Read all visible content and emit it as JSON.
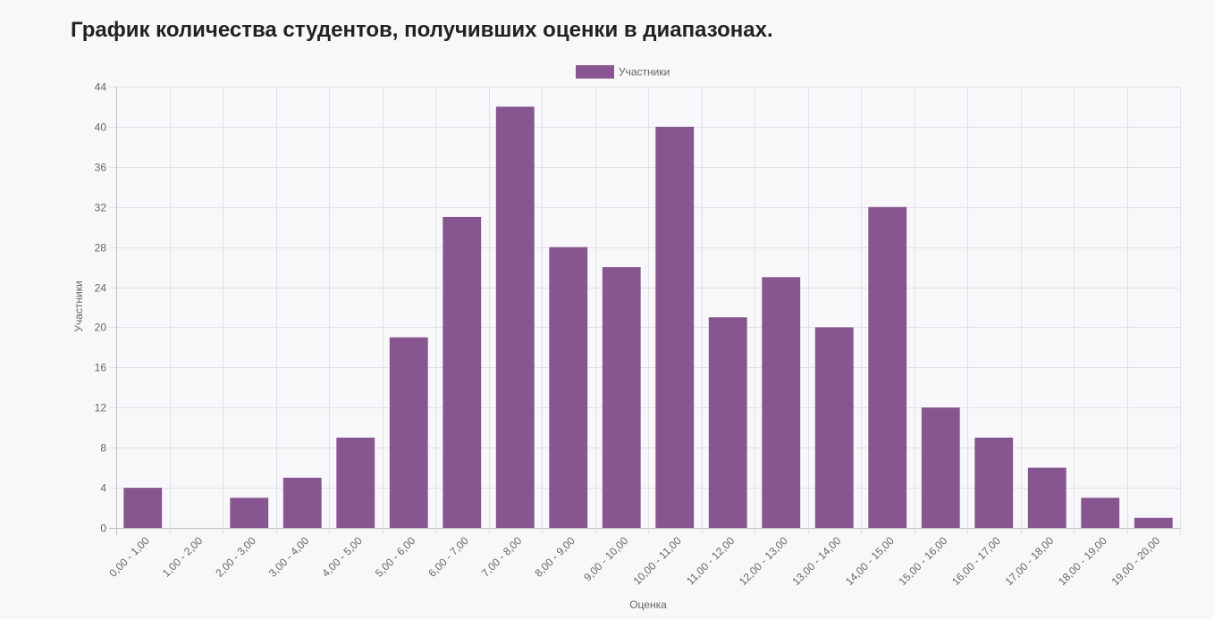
{
  "title": "График количества студентов, получивших оценки в диапазонах.",
  "chart_data": {
    "type": "bar",
    "categories": [
      "0,00 - 1,00",
      "1,00 - 2,00",
      "2,00 - 3,00",
      "3,00 - 4,00",
      "4,00 - 5,00",
      "5,00 - 6,00",
      "6,00 - 7,00",
      "7,00 - 8,00",
      "8,00 - 9,00",
      "9,00 - 10,00",
      "10,00 - 11,00",
      "11,00 - 12,00",
      "12,00 - 13,00",
      "13,00 - 14,00",
      "14,00 - 15,00",
      "15,00 - 16,00",
      "16,00 - 17,00",
      "17,00 - 18,00",
      "18,00 - 19,00",
      "19,00 - 20,00"
    ],
    "series": [
      {
        "name": "Участники",
        "color": "#87558f",
        "values": [
          4,
          0,
          3,
          5,
          9,
          19,
          31,
          42,
          28,
          26,
          40,
          21,
          25,
          20,
          32,
          12,
          9,
          6,
          3,
          1
        ]
      }
    ],
    "xlabel": "Оценка",
    "ylabel": "Участники",
    "ylim": [
      0,
      44
    ],
    "yticks": [
      0,
      4,
      8,
      12,
      16,
      20,
      24,
      28,
      32,
      36,
      40,
      44
    ],
    "grid": true,
    "legend": "top-center"
  }
}
